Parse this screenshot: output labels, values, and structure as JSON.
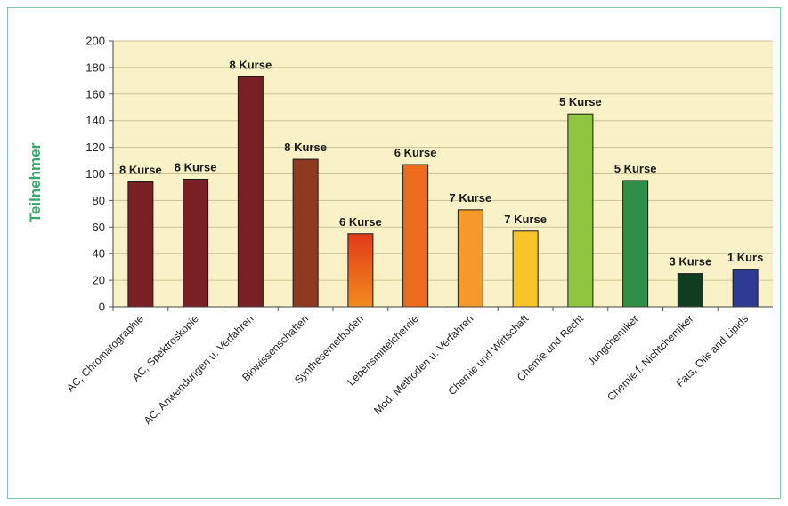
{
  "chart_data": {
    "type": "bar",
    "title": "",
    "xlabel": "",
    "ylabel": "Teilnehmer",
    "ylim": [
      0,
      200
    ],
    "yticks": [
      0,
      20,
      40,
      60,
      80,
      100,
      120,
      140,
      160,
      180,
      200
    ],
    "grid": true,
    "legend": "none",
    "categories": [
      "AC, Chromatographie",
      "AC, Spektroskopie",
      "AC, Anwendungen u. Verfahren",
      "Biowissenschaften",
      "Synthesemethoden",
      "Lebensmittelchemie",
      "Mod. Methoden u. Verfahren",
      "Chemie und Wirtschaft",
      "Chemie und Recht",
      "Jungchemiker",
      "Chemie f. Nichtchemiker",
      "Fats, Oils and Lipids"
    ],
    "values": [
      94,
      96,
      173,
      111,
      55,
      107,
      73,
      57,
      145,
      95,
      25,
      28
    ],
    "data_labels": [
      "8 Kurse",
      "8 Kurse",
      "8 Kurse",
      "8 Kurse",
      "6 Kurse",
      "6 Kurse",
      "7 Kurse",
      "7 Kurse",
      "5 Kurse",
      "5 Kurse",
      "3 Kurse",
      "1 Kurs"
    ],
    "colors": [
      "#7a1f24",
      "#7a1f24",
      "#7a1f24",
      "#8e3a22",
      "#e8481c",
      "#ee6a1e",
      "#f59a2a",
      "#f6c52a",
      "#8ec63f",
      "#2f8f4a",
      "#0f3d20",
      "#2e3b94"
    ],
    "plot_background": "#f8f2c6",
    "gridline_color": "#c9c193"
  }
}
